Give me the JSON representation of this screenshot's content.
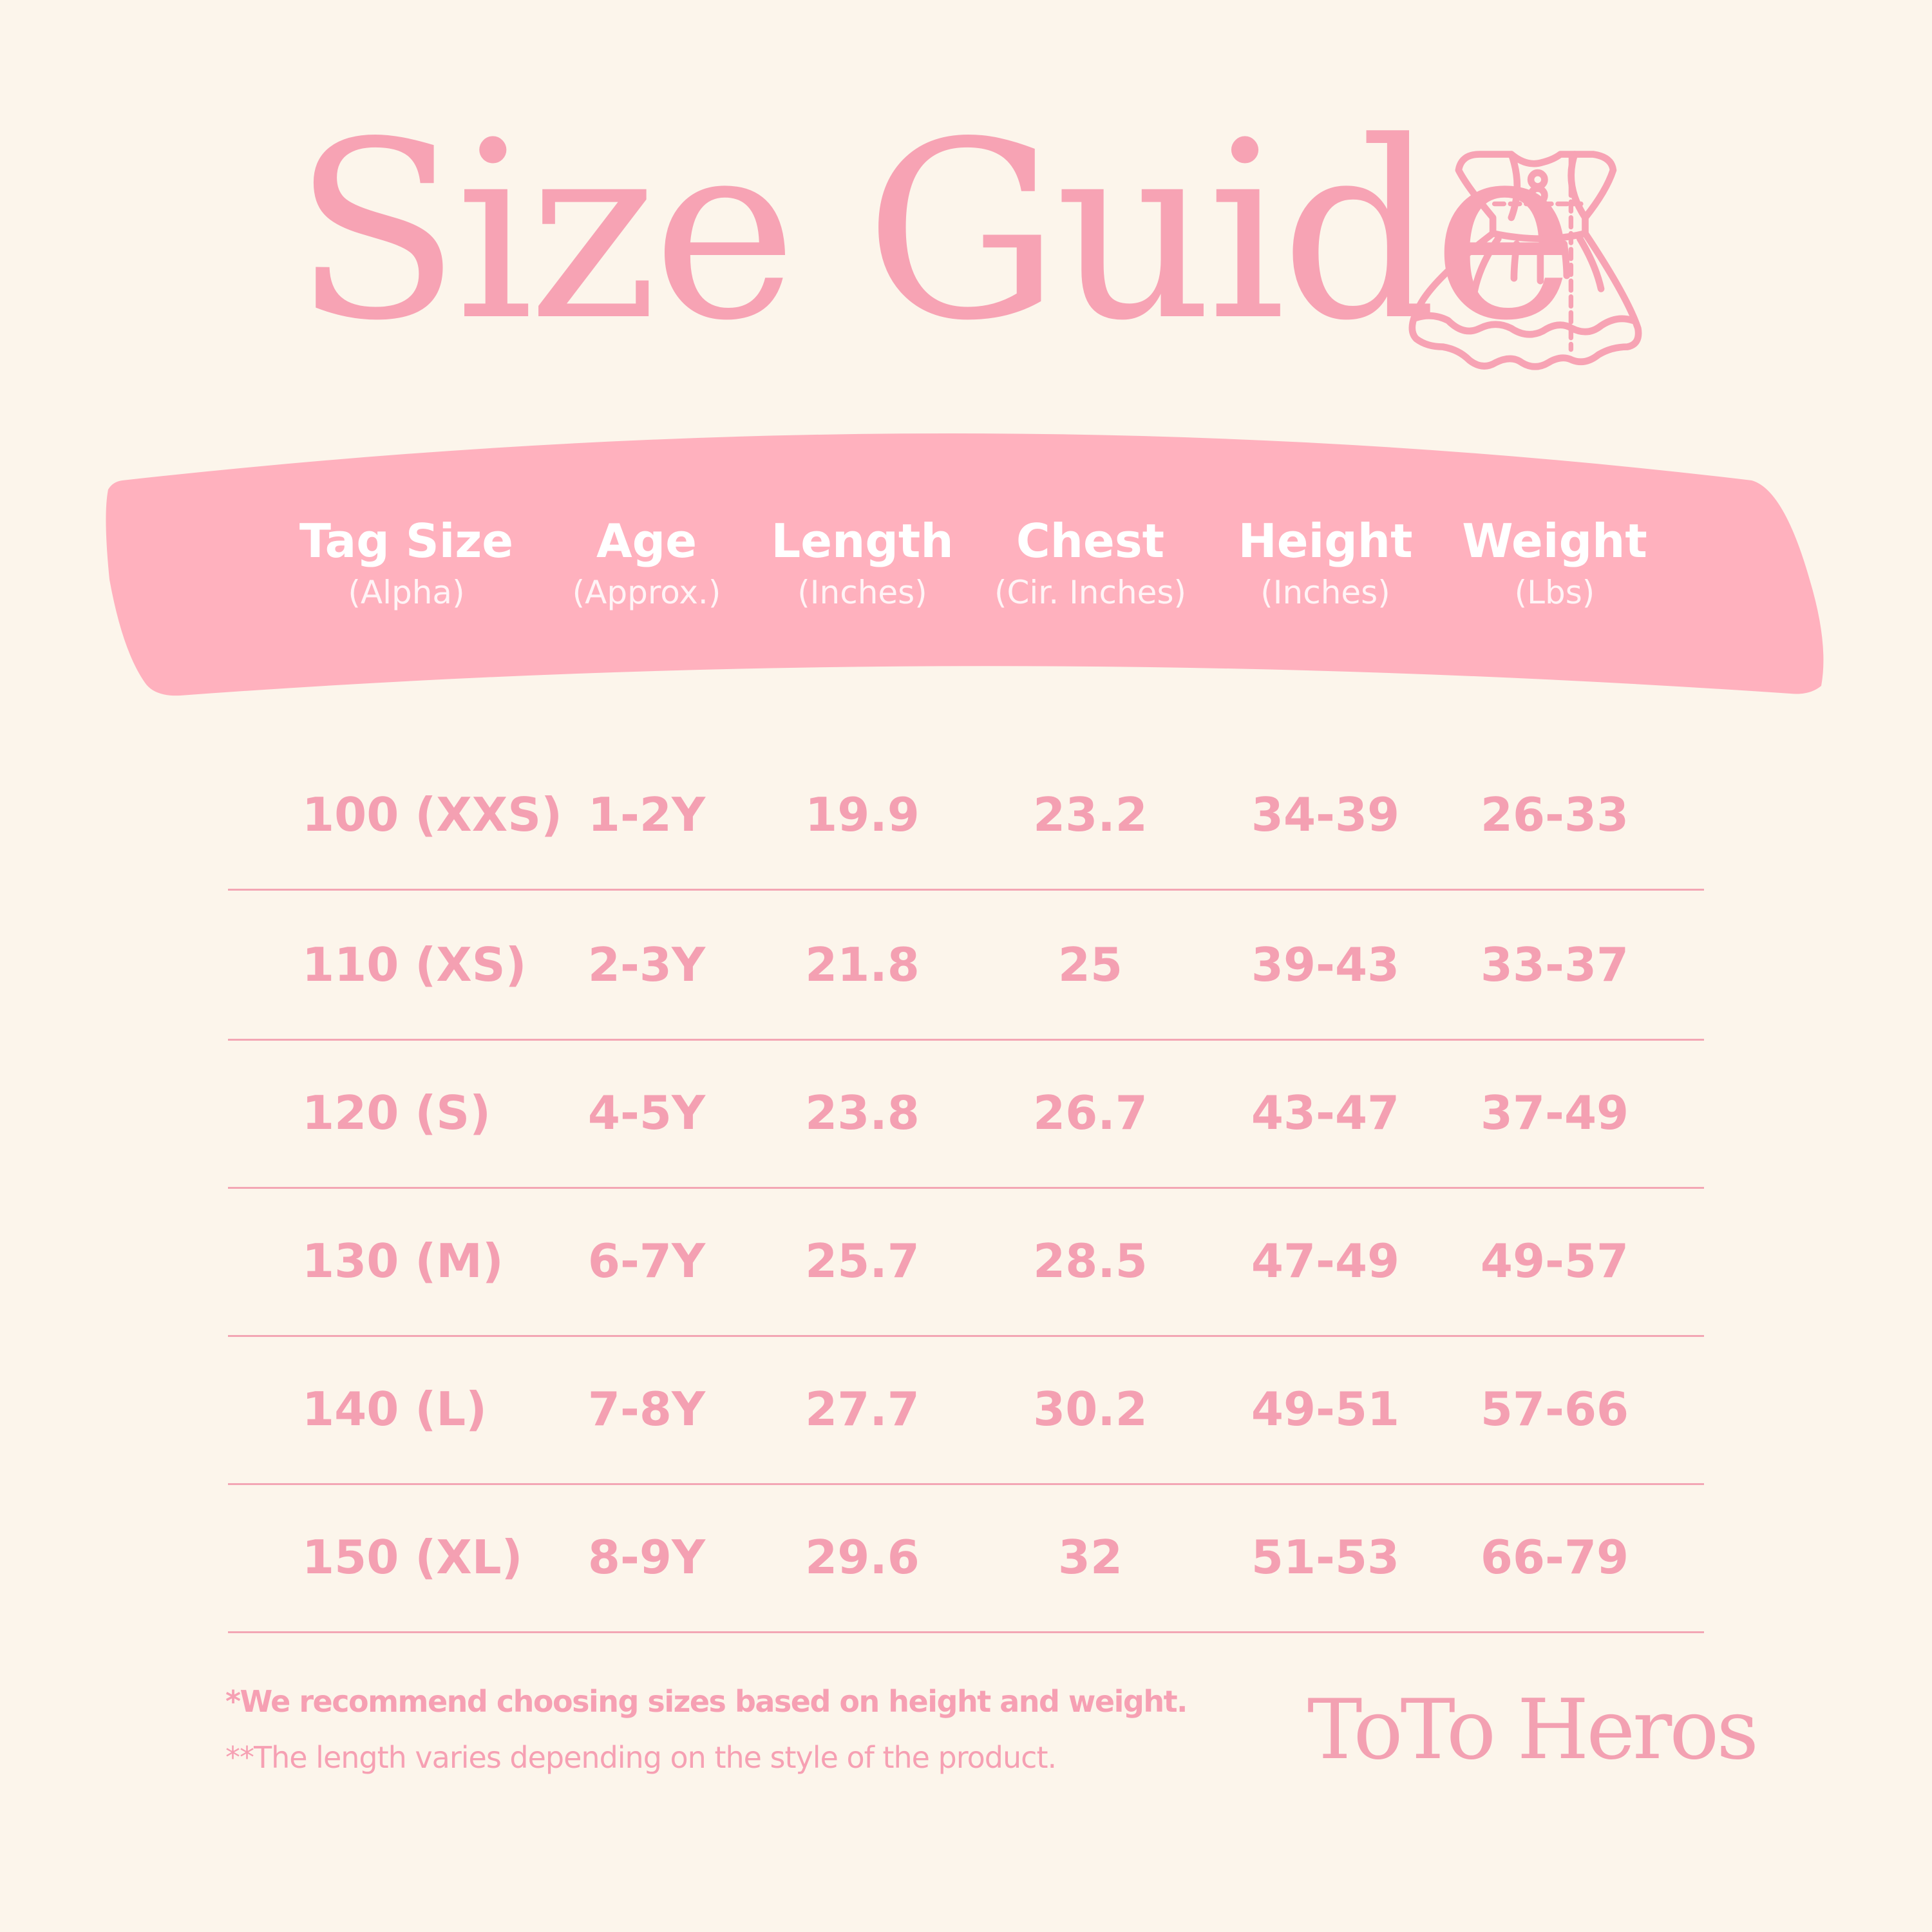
{
  "title": "Size Guide",
  "colors": {
    "background": "#fcf5eb",
    "accent": "#f7a3b4",
    "banner": "#ffb1be"
  },
  "icon": "dress-icon",
  "columns": [
    {
      "label": "Tag Size",
      "sub": "(Alpha)"
    },
    {
      "label": "Age",
      "sub": "(Approx.)"
    },
    {
      "label": "Length",
      "sub": "(Inches)"
    },
    {
      "label": "Chest",
      "sub": "(Cir. Inches)"
    },
    {
      "label": "Height",
      "sub": "(Inches)"
    },
    {
      "label": "Weight",
      "sub": "(Lbs)"
    }
  ],
  "rows": [
    [
      "100 (XXS)",
      "1-2Y",
      "19.9",
      "23.2",
      "34-39",
      "26-33"
    ],
    [
      "110 (XS)",
      "2-3Y",
      "21.8",
      "25",
      "39-43",
      "33-37"
    ],
    [
      "120 (S)",
      "4-5Y",
      "23.8",
      "26.7",
      "43-47",
      "37-49"
    ],
    [
      "130 (M)",
      "6-7Y",
      "25.7",
      "28.5",
      "47-49",
      "49-57"
    ],
    [
      "140 (L)",
      "7-8Y",
      "27.7",
      "30.2",
      "49-51",
      "57-66"
    ],
    [
      "150 (XL)",
      "8-9Y",
      "29.6",
      "32",
      "51-53",
      "66-79"
    ]
  ],
  "notes": [
    "*We recommend choosing sizes based on height and weight.",
    "**The length varies depending on the style of the product."
  ],
  "brand": "ToTo Heros"
}
